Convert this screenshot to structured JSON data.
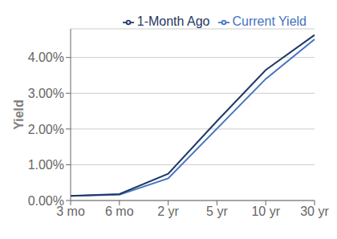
{
  "chart_data": {
    "type": "line",
    "ylabel": "Yield",
    "categories": [
      "3 mo",
      "6 mo",
      "2 yr",
      "5 yr",
      "10 yr",
      "30 yr"
    ],
    "series": [
      {
        "name": "Current Yield",
        "color": "#4472C4",
        "values": [
          0.13,
          0.16,
          0.62,
          2.01,
          3.4,
          4.51
        ]
      },
      {
        "name": "1-Month Ago",
        "color": "#1F3864",
        "values": [
          0.13,
          0.18,
          0.75,
          2.22,
          3.65,
          4.63
        ]
      }
    ],
    "ylim": [
      0.0,
      4.8
    ],
    "yticks": [
      {
        "value": 0.0,
        "label": "0.00%"
      },
      {
        "value": 1.0,
        "label": "1.00%"
      },
      {
        "value": 2.0,
        "label": "2.00%"
      },
      {
        "value": 3.0,
        "label": "3.00%"
      },
      {
        "value": 4.0,
        "label": "4.00%"
      }
    ],
    "grid": true,
    "legend": "upper right"
  }
}
